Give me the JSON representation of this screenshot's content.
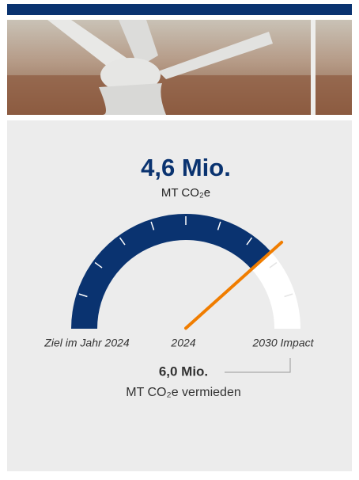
{
  "chart_data": {
    "type": "gauge",
    "value": 4.6,
    "value_label": "4,6 Mio.",
    "unit": "MT CO₂e",
    "target": 6.0,
    "target_label": "6,0 Mio.",
    "target_unit": "MT CO₂e vermieden",
    "scale_labels": [
      "Ziel im Jahr 2024",
      "2024",
      "2030 Impact"
    ],
    "fill_color": "#0a3370",
    "track_color": "#ffffff",
    "needle_color": "#f07d00"
  }
}
